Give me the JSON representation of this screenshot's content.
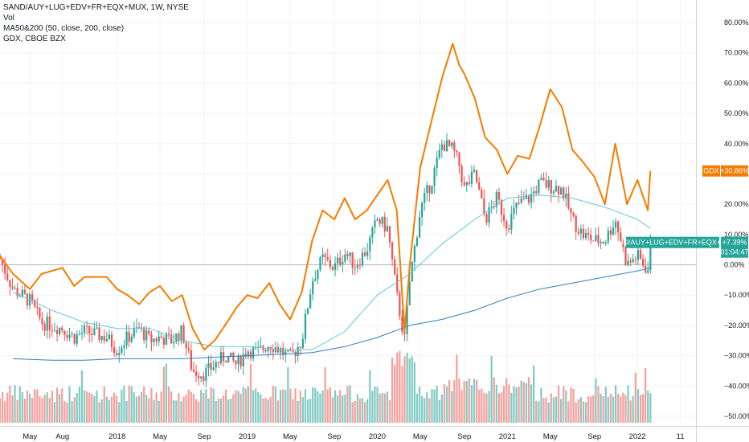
{
  "legend": {
    "main": "SAND/AUY+LUG+EDV+FR+EQX+MUX, 1W, NYSE",
    "vol": "Vol",
    "ma": "MA50&200 (50, close, 200, close)",
    "compare": "GDX, CBOE BZX"
  },
  "colors": {
    "up": "#26a69a",
    "down": "#ef5350",
    "vol_up": "#80cbc4",
    "vol_down": "#f4a09c",
    "gdx": "#f57c00",
    "ma50": "#64c8dc",
    "ma200": "#2f7fc1",
    "zero_line": "#b2b5be"
  },
  "tags": {
    "gdx_label": "GDX",
    "gdx_value": "+30.86%",
    "main_label": "SAND/AUY+LUG+EDV+FR+EQX+MUX",
    "main_value": "+7.39%",
    "main_countdown": "01:04:47"
  },
  "chart_data": {
    "type": "line",
    "ylabel": "",
    "ylim": [
      -52,
      86
    ],
    "y_ticks": [
      "80.00%",
      "70.00%",
      "60.00%",
      "50.00%",
      "40.00%",
      "30.00%",
      "20.00%",
      "10.00%",
      "0.00%",
      "−10.00%",
      "−20.00%",
      "−30.00%",
      "−40.00%",
      "−50.00%"
    ],
    "y_tick_values": [
      80,
      70,
      60,
      50,
      40,
      30,
      20,
      10,
      0,
      -10,
      -20,
      -30,
      -40,
      -50
    ],
    "x_ticks": [
      "May",
      "Aug",
      "2018",
      "May",
      "Sep",
      "2019",
      "May",
      "Sep",
      "2020",
      "May",
      "Sep",
      "2021",
      "May",
      "Sep",
      "2022",
      "11"
    ],
    "x_tick_values": [
      2017.33,
      2017.58,
      2018.0,
      2018.33,
      2018.67,
      2019.0,
      2019.33,
      2019.67,
      2020.0,
      2020.33,
      2020.67,
      2021.0,
      2021.33,
      2021.67,
      2022.0,
      2022.33
    ],
    "xlim": [
      2017.1,
      2022.45
    ],
    "series": [
      {
        "name": "GDX",
        "x": [
          2017.1,
          2017.2,
          2017.33,
          2017.42,
          2017.58,
          2017.67,
          2017.75,
          2017.92,
          2018.0,
          2018.08,
          2018.17,
          2018.25,
          2018.33,
          2018.42,
          2018.5,
          2018.58,
          2018.67,
          2018.75,
          2018.83,
          2018.92,
          2019.0,
          2019.08,
          2019.17,
          2019.25,
          2019.33,
          2019.42,
          2019.5,
          2019.58,
          2019.67,
          2019.75,
          2019.83,
          2019.92,
          2020.0,
          2020.08,
          2020.15,
          2020.21,
          2020.25,
          2020.33,
          2020.42,
          2020.5,
          2020.58,
          2020.63,
          2020.67,
          2020.75,
          2020.83,
          2020.92,
          2021.0,
          2021.08,
          2021.17,
          2021.25,
          2021.33,
          2021.42,
          2021.5,
          2021.58,
          2021.67,
          2021.75,
          2021.83,
          2021.92,
          2022.0,
          2022.08,
          2022.1
        ],
        "y": [
          3,
          -3,
          -8,
          -3,
          -1,
          -7,
          -4,
          -4,
          -8,
          -10,
          -13,
          -9,
          -7,
          -12,
          -10,
          -21,
          -28,
          -25,
          -20,
          -14,
          -10,
          -11,
          -6,
          -13,
          -18,
          -9,
          8,
          18,
          15,
          22,
          15,
          18,
          23,
          28,
          18,
          -22,
          0,
          32,
          48,
          62,
          73,
          66,
          63,
          55,
          42,
          38,
          30,
          36,
          35,
          46,
          58,
          52,
          38,
          34,
          29,
          20,
          40,
          20,
          28,
          18,
          31
        ]
      },
      {
        "name": "SAND/AUY+LUG+EDV+FR+EQX+MUX",
        "x": [
          2017.1,
          2017.2,
          2017.33,
          2017.42,
          2017.58,
          2017.67,
          2017.75,
          2017.92,
          2018.0,
          2018.08,
          2018.17,
          2018.25,
          2018.33,
          2018.42,
          2018.5,
          2018.58,
          2018.67,
          2018.75,
          2018.83,
          2018.92,
          2019.0,
          2019.08,
          2019.17,
          2019.25,
          2019.33,
          2019.42,
          2019.5,
          2019.58,
          2019.67,
          2019.75,
          2019.83,
          2019.92,
          2020.0,
          2020.08,
          2020.15,
          2020.21,
          2020.25,
          2020.33,
          2020.42,
          2020.5,
          2020.58,
          2020.63,
          2020.67,
          2020.75,
          2020.83,
          2020.92,
          2021.0,
          2021.08,
          2021.17,
          2021.25,
          2021.33,
          2021.42,
          2021.5,
          2021.58,
          2021.67,
          2021.75,
          2021.83,
          2021.92,
          2022.0,
          2022.08,
          2022.1
        ],
        "y": [
          2,
          -8,
          -12,
          -19,
          -21,
          -24,
          -22,
          -24,
          -28,
          -24,
          -21,
          -25,
          -24,
          -25,
          -22,
          -35,
          -36,
          -33,
          -30,
          -33,
          -28,
          -29,
          -26,
          -28,
          -31,
          -25,
          -5,
          2,
          -1,
          4,
          0,
          5,
          15,
          12,
          -10,
          -25,
          -5,
          18,
          28,
          40,
          38,
          33,
          25,
          30,
          15,
          22,
          13,
          20,
          22,
          27,
          26,
          25,
          15,
          10,
          8,
          8,
          15,
          0,
          3,
          -2,
          7.39
        ]
      },
      {
        "name": "MA50",
        "x": [
          2017.2,
          2017.5,
          2017.75,
          2018.0,
          2018.25,
          2018.5,
          2018.75,
          2019.0,
          2019.25,
          2019.5,
          2019.75,
          2020.0,
          2020.25,
          2020.5,
          2020.75,
          2021.0,
          2021.25,
          2021.5,
          2021.75,
          2022.0,
          2022.1
        ],
        "y": [
          -9,
          -15,
          -19,
          -21,
          -21,
          -25,
          -27,
          -27,
          -28,
          -28,
          -22,
          -10,
          -3,
          7,
          15,
          22,
          23,
          22,
          19,
          15,
          12
        ]
      },
      {
        "name": "MA200",
        "x": [
          2017.2,
          2017.5,
          2017.75,
          2018.0,
          2018.25,
          2018.5,
          2018.75,
          2019.0,
          2019.25,
          2019.5,
          2019.75,
          2020.0,
          2020.25,
          2020.5,
          2020.75,
          2021.0,
          2021.25,
          2021.5,
          2021.75,
          2022.0,
          2022.1
        ],
        "y": [
          -31,
          -31.5,
          -31.5,
          -31,
          -31,
          -31,
          -30.5,
          -30,
          -29.5,
          -29,
          -27,
          -24,
          -20,
          -18,
          -15,
          -11,
          -8,
          -6,
          -4,
          -2,
          -1
        ]
      }
    ],
    "candles": {
      "x_start": 2017.1,
      "x_end": 2022.1,
      "count": 263
    }
  }
}
